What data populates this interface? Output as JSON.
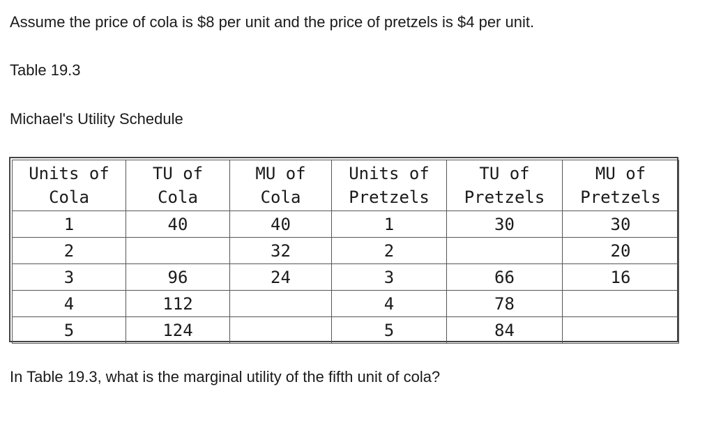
{
  "intro": "Assume the price of cola is $8 per unit and the price of pretzels is $4 per unit.",
  "caption": "Table 19.3",
  "subtitle": "Michael's Utility Schedule",
  "table": {
    "headers": [
      {
        "line1": "Units of",
        "line2": "Cola"
      },
      {
        "line1": "TU of",
        "line2": "Cola"
      },
      {
        "line1": "MU of",
        "line2": "Cola"
      },
      {
        "line1": "Units of",
        "line2": "Pretzels"
      },
      {
        "line1": "TU of",
        "line2": "Pretzels"
      },
      {
        "line1": "MU of",
        "line2": "Pretzels"
      }
    ],
    "rows": [
      [
        "1",
        "40",
        "40",
        "1",
        "30",
        "30"
      ],
      [
        "2",
        "",
        "32",
        "2",
        "",
        "20"
      ],
      [
        "3",
        "96",
        "24",
        "3",
        "66",
        "16"
      ],
      [
        "4",
        "112",
        "",
        "4",
        "78",
        ""
      ],
      [
        "5",
        "124",
        "",
        "5",
        "84",
        ""
      ]
    ]
  },
  "question": "In Table 19.3, what is the marginal utility of the fifth unit of cola?"
}
